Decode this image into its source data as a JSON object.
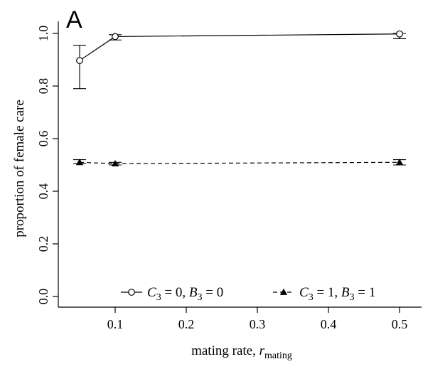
{
  "panel_label": "A",
  "chart_data": {
    "type": "line",
    "xlabel_main": "mating rate, ",
    "xlabel_var": "r",
    "xlabel_sub": "mating",
    "ylabel": "proportion of female care",
    "xlim": [
      0.03,
      0.52
    ],
    "ylim": [
      0.0,
      1.0
    ],
    "x_ticks": [
      0.1,
      0.2,
      0.3,
      0.4,
      0.5
    ],
    "x_tick_labels": [
      "0.1",
      "0.2",
      "0.3",
      "0.4",
      "0.5"
    ],
    "y_ticks": [
      0.0,
      0.2,
      0.4,
      0.6,
      0.8,
      1.0
    ],
    "y_tick_labels": [
      "0.0",
      "0.2",
      "0.4",
      "0.6",
      "0.8",
      "1.0"
    ],
    "grid": false,
    "legend_position": "bottom",
    "series": [
      {
        "name": "C3 = 0, B3 = 0",
        "legend_parts": [
          "C",
          "3",
          " = 0, ",
          "B",
          "3",
          " = 0"
        ],
        "marker": "open-circle",
        "line_style": "solid",
        "x": [
          0.05,
          0.1,
          0.5
        ],
        "y": [
          0.897,
          0.988,
          0.998
        ],
        "err_low": [
          0.79,
          0.975,
          0.98
        ],
        "err_high": [
          0.955,
          0.995,
          1.0
        ]
      },
      {
        "name": "C3 = 1, B3 = 1",
        "legend_parts": [
          "C",
          "3",
          " = 1, ",
          "B",
          "3",
          " = 1"
        ],
        "marker": "filled-triangle",
        "line_style": "dashed",
        "x": [
          0.05,
          0.1,
          0.5
        ],
        "y": [
          0.51,
          0.505,
          0.51
        ],
        "err_low": [
          0.505,
          0.5,
          0.5
        ],
        "err_high": [
          0.52,
          0.51,
          0.52
        ]
      }
    ]
  }
}
